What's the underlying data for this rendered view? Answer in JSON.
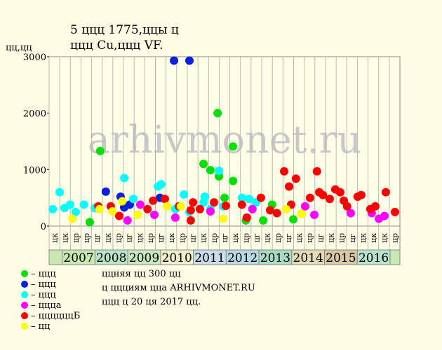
{
  "chart_data": {
    "type": "scatter",
    "title": "5 ццц 1775,ццы ц",
    "subtitle": "ццц Cu,ццц VF.",
    "y_label": "цц,цц",
    "watermark": "arhivmonet.ru",
    "xlim": [
      2006.6,
      2017.3
    ],
    "xticks": [
      2007,
      2008,
      2009,
      2010,
      2011,
      2012,
      2013,
      2014,
      2015,
      2016
    ],
    "year_colors": [
      "#c8e8b0",
      "#b8e4c8",
      "#c8e8c0",
      "#f0f0c8",
      "#c8dcec",
      "#b8d8e4",
      "#a8dcc4",
      "#e4dcb4",
      "#d8c8a4",
      "#b8e4cc"
    ],
    "sub_labels": [
      "цк",
      "цк",
      "цр",
      "цр",
      "цг",
      "цк",
      "цр",
      "цг",
      "цк",
      "цр",
      "цг",
      "цк",
      "цр",
      "цг",
      "цк",
      "цр",
      "цг",
      "цк",
      "цр",
      "цг",
      "цк",
      "цр",
      "цг",
      "цк",
      "цр",
      "цг",
      "цк",
      "цр",
      "цг",
      "цк",
      "цк",
      "цк",
      "цр"
    ],
    "ylim": [
      0,
      3000
    ],
    "yticks": [
      0,
      1000,
      2000,
      3000
    ],
    "grid": true,
    "series": [
      {
        "name": "– ццц",
        "color": "#00e000",
        "x": [
          2008.16,
          2011.31,
          2011.52,
          2011.74,
          2011.78,
          2012.21,
          2012.21,
          2011.95,
          2007.84,
          2013.4,
          2014.05,
          2012.6,
          2013.13
        ],
        "values": [
          1330,
          1100,
          990,
          2000,
          880,
          1410,
          800,
          500,
          70,
          380,
          120,
          100,
          100
        ]
      },
      {
        "name": "– ццц",
        "color": "#0020e0",
        "x": [
          2010.41,
          2010.88,
          2008.33,
          2008.78,
          2008.89,
          2009.06,
          2009.98
        ],
        "values": [
          2930,
          2930,
          610,
          520,
          330,
          380,
          500
        ]
      },
      {
        "name": "– ццц",
        "color": "#00ffff",
        "x": [
          2006.71,
          2006.92,
          2007.07,
          2007.24,
          2007.41,
          2007.66,
          2007.99,
          2008.89,
          2009.17,
          2009.92,
          2010.02,
          2010.71,
          2011.31,
          2011.35,
          2011.78,
          2011.91,
          2012.48,
          2012.7,
          2012.91,
          2010.45,
          2010.88,
          2011.52
        ],
        "values": [
          300,
          600,
          320,
          380,
          250,
          380,
          320,
          850,
          480,
          700,
          740,
          560,
          420,
          520,
          980,
          350,
          500,
          480,
          420,
          300,
          250,
          300
        ]
      },
      {
        "name": "– ццца",
        "color": "#ff00ff",
        "x": [
          2008.99,
          2009.38,
          2009.81,
          2010.45,
          2011.52,
          2012.8,
          2014.41,
          2014.69,
          2015.8,
          2016.44,
          2016.66,
          2016.83
        ],
        "values": [
          100,
          380,
          200,
          150,
          260,
          300,
          350,
          200,
          230,
          230,
          130,
          180
        ]
      },
      {
        "name": "– ццццццБ",
        "color": "#ff0000",
        "x": [
          2008.1,
          2008.48,
          2008.74,
          2009.6,
          2009.77,
          2010.13,
          2010.56,
          2010.92,
          2010.99,
          2011.2,
          2011.63,
          2011.99,
          2012.48,
          2012.63,
          2013.06,
          2013.34,
          2013.77,
          2013.92,
          2014.13,
          2013.98,
          2014.56,
          2014.77,
          2014.84,
          2014.95,
          2015.16,
          2015.33,
          2015.48,
          2015.59,
          2015.69,
          2016.01,
          2016.12,
          2016.4,
          2016.55,
          2016.87,
          2017.15,
          2014.3,
          2013.55,
          2010.92
        ],
        "values": [
          350,
          350,
          180,
          300,
          450,
          480,
          350,
          280,
          420,
          300,
          420,
          360,
          380,
          150,
          500,
          280,
          970,
          700,
          840,
          380,
          500,
          970,
          600,
          550,
          480,
          650,
          600,
          450,
          350,
          520,
          550,
          300,
          350,
          600,
          250,
          220,
          230,
          100
        ]
      },
      {
        "name": "– цц",
        "color": "#ffff00",
        "x": [
          2008.14,
          2008.53,
          2008.83,
          2009.3,
          2010.2,
          2010.62,
          2011.91,
          2013.83,
          2014.3,
          2007.31
        ],
        "values": [
          300,
          260,
          440,
          200,
          350,
          350,
          130,
          300,
          220,
          130
        ]
      }
    ],
    "notes": [
      "ццняя цц 300 цц",
      "ц ццциям цца ARHIVMONET.RU",
      "ццц ц 20 ця 2017 цц."
    ]
  }
}
